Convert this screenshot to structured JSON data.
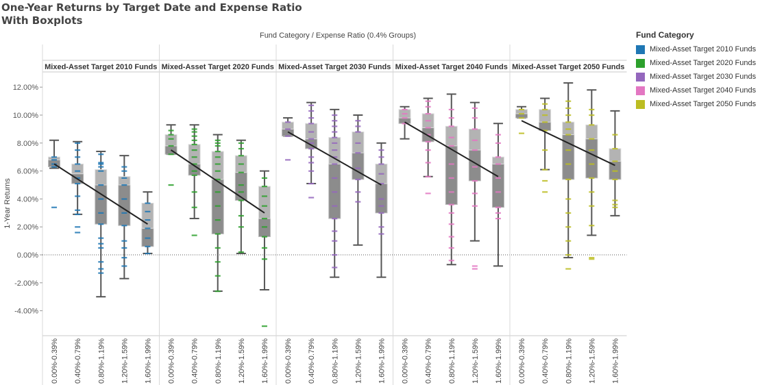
{
  "title_line1": "One-Year Returns by Target Date and Expense Ratio",
  "title_line2": "With Boxplots",
  "column_header": "Fund Category  /  Expense Ratio (0.4% Groups)",
  "legend": {
    "title": "Fund Category",
    "items": [
      {
        "label": "Mixed-Asset Target 2010 Funds",
        "color": "#1f77b4"
      },
      {
        "label": "Mixed-Asset Target 2020 Funds",
        "color": "#2ca02c"
      },
      {
        "label": "Mixed-Asset Target 2030 Funds",
        "color": "#9467bd"
      },
      {
        "label": "Mixed-Asset Target 2040 Funds",
        "color": "#e377c2"
      },
      {
        "label": "Mixed-Asset Target 2050 Funds",
        "color": "#bcbd22"
      }
    ]
  },
  "chart_data": {
    "type": "boxplot",
    "ylabel": "1-Year Returns",
    "ylim": [
      -6,
      13
    ],
    "yticks": [
      12,
      10,
      8,
      6,
      4,
      2,
      0,
      -2,
      -4
    ],
    "ytick_labels": [
      "12.00%",
      "10.00%",
      "8.00%",
      "6.00%",
      "4.00%",
      "2.00%",
      "0.00%",
      "-2.00%",
      "-4.00%"
    ],
    "categories": [
      "0.00%-0.39%",
      "0.40%-0.79%",
      "0.80%-1.19%",
      "1.20%-1.59%",
      "1.60%-1.99%"
    ],
    "grid": false,
    "zero_reference_line": true,
    "trend_line": true,
    "panels": [
      {
        "name": "Mixed-Asset Target 2010 Funds",
        "color": "#1f77b4",
        "boxes": [
          {
            "min": 6.2,
            "q1": 6.3,
            "median": 6.8,
            "q3": 7.0,
            "max": 8.2,
            "points": [
              3.4,
              6.3,
              6.5,
              6.8,
              7.0
            ]
          },
          {
            "min": 2.9,
            "q1": 5.1,
            "median": 5.8,
            "q3": 6.5,
            "max": 8.1,
            "points": [
              1.6,
              2.0,
              2.9,
              3.2,
              4.2,
              5.1,
              5.5,
              6.0,
              6.5,
              7.0,
              7.5,
              8.0
            ]
          },
          {
            "min": -3.0,
            "q1": 2.2,
            "median": 5.0,
            "q3": 6.1,
            "max": 7.4,
            "points": [
              -1.3,
              -1.0,
              -0.5,
              0.5,
              0.8,
              1.2,
              2.2,
              3.0,
              4.0,
              5.0,
              6.0,
              6.3,
              6.5,
              6.6,
              7.2
            ]
          },
          {
            "min": -1.7,
            "q1": 2.1,
            "median": 5.0,
            "q3": 5.6,
            "max": 7.1,
            "points": [
              -0.8,
              -0.2,
              0.5,
              1.0,
              2.1,
              3.0,
              4.0,
              5.0,
              5.5,
              6.0,
              6.3
            ]
          },
          {
            "min": 0.1,
            "q1": 0.6,
            "median": 1.9,
            "q3": 3.7,
            "max": 4.5,
            "points": [
              0.1,
              0.6,
              1.2,
              1.9,
              2.5,
              3.1,
              3.7
            ]
          }
        ],
        "trend": {
          "start": 6.5,
          "end": 2.2
        }
      },
      {
        "name": "Mixed-Asset Target 2020 Funds",
        "color": "#2ca02c",
        "boxes": [
          {
            "min": 7.2,
            "q1": 7.2,
            "median": 7.8,
            "q3": 8.6,
            "max": 9.3,
            "points": [
              5.0,
              7.2,
              7.8,
              8.3,
              8.6,
              8.9
            ]
          },
          {
            "min": 2.6,
            "q1": 5.7,
            "median": 6.5,
            "q3": 7.9,
            "max": 9.3,
            "points": [
              1.4,
              3.4,
              4.5,
              5.7,
              6.0,
              6.5,
              7.0,
              7.5,
              7.9,
              8.2,
              8.5,
              8.8,
              9.0
            ]
          },
          {
            "min": -2.6,
            "q1": 1.5,
            "median": 5.4,
            "q3": 7.4,
            "max": 8.6,
            "points": [
              -2.6,
              -1.5,
              -0.5,
              0.5,
              1.5,
              2.5,
              3.5,
              4.5,
              5.4,
              6.0,
              6.5,
              7.0,
              7.4,
              7.8,
              8.0,
              8.2
            ]
          },
          {
            "min": 0.1,
            "q1": 3.9,
            "median": 5.9,
            "q3": 7.1,
            "max": 8.2,
            "points": [
              0.2,
              2.0,
              2.8,
              3.9,
              4.5,
              5.0,
              5.9,
              6.5,
              7.1,
              7.6,
              8.0
            ]
          },
          {
            "min": -2.5,
            "q1": 1.3,
            "median": 2.6,
            "q3": 4.9,
            "max": 6.0,
            "points": [
              -5.1,
              -0.3,
              0.5,
              1.3,
              2.0,
              2.6,
              3.5,
              4.2,
              4.9,
              5.5
            ]
          }
        ],
        "trend": {
          "start": 7.5,
          "end": 3.0
        }
      },
      {
        "name": "Mixed-Asset Target 2030 Funds",
        "color": "#9467bd",
        "boxes": [
          {
            "min": 8.5,
            "q1": 8.5,
            "median": 9.0,
            "q3": 9.5,
            "max": 9.8,
            "points": [
              6.8,
              8.5,
              9.0,
              9.5
            ]
          },
          {
            "min": 5.1,
            "q1": 7.6,
            "median": 8.3,
            "q3": 9.4,
            "max": 10.9,
            "points": [
              4.1,
              5.1,
              6.0,
              6.6,
              7.0,
              7.6,
              8.0,
              8.3,
              8.8,
              9.4,
              9.8,
              10.3,
              10.7
            ]
          },
          {
            "min": -1.6,
            "q1": 2.6,
            "median": 6.5,
            "q3": 8.4,
            "max": 10.4,
            "points": [
              -0.9,
              0.0,
              1.0,
              1.7,
              2.6,
              3.5,
              4.5,
              5.5,
              6.5,
              7.0,
              7.5,
              8.0,
              8.4,
              8.8,
              9.2,
              9.6,
              10.0
            ]
          },
          {
            "min": 0.7,
            "q1": 5.4,
            "median": 7.3,
            "q3": 8.8,
            "max": 10.0,
            "points": [
              3.8,
              4.5,
              5.4,
              6.2,
              7.3,
              8.0,
              8.8,
              9.2,
              9.6
            ]
          },
          {
            "min": -1.6,
            "q1": 3.0,
            "median": 5.1,
            "q3": 6.5,
            "max": 8.0,
            "points": [
              1.5,
              2.0,
              3.0,
              3.5,
              4.0,
              5.1,
              5.8,
              6.5,
              7.0,
              7.5
            ]
          }
        ],
        "trend": {
          "start": 8.8,
          "end": 5.0
        }
      },
      {
        "name": "Mixed-Asset Target 2040 Funds",
        "color": "#e377c2",
        "boxes": [
          {
            "min": 8.3,
            "q1": 9.4,
            "median": 9.8,
            "q3": 10.4,
            "max": 10.6,
            "points": [
              9.4,
              9.8,
              10.1,
              10.4
            ]
          },
          {
            "min": 5.6,
            "q1": 8.1,
            "median": 9.1,
            "q3": 10.1,
            "max": 11.2,
            "points": [
              4.4,
              5.6,
              6.6,
              7.5,
              8.1,
              8.6,
              9.1,
              9.6,
              10.1,
              10.6,
              11.0
            ]
          },
          {
            "min": -0.7,
            "q1": 3.6,
            "median": 7.8,
            "q3": 9.2,
            "max": 11.5,
            "points": [
              -0.4,
              0.5,
              1.3,
              2.2,
              3.0,
              3.6,
              4.5,
              5.5,
              6.5,
              7.8,
              8.4,
              9.2,
              9.8,
              10.4
            ]
          },
          {
            "min": 1.0,
            "q1": 5.3,
            "median": 7.5,
            "q3": 9.0,
            "max": 10.9,
            "points": [
              -1.0,
              -0.8,
              3.5,
              4.4,
              5.3,
              6.3,
              7.5,
              8.2,
              9.0,
              9.8,
              10.5
            ]
          },
          {
            "min": -0.8,
            "q1": 3.4,
            "median": 6.5,
            "q3": 7.0,
            "max": 9.4,
            "points": [
              2.6,
              3.0,
              3.4,
              4.5,
              5.5,
              6.5,
              7.0,
              8.0,
              8.6
            ]
          }
        ],
        "trend": {
          "start": 9.5,
          "end": 5.6
        }
      },
      {
        "name": "Mixed-Asset Target 2050 Funds",
        "color": "#bcbd22",
        "boxes": [
          {
            "min": 9.8,
            "q1": 9.8,
            "median": 10.1,
            "q3": 10.4,
            "max": 10.6,
            "points": [
              8.7,
              9.8,
              10.1,
              10.4
            ]
          },
          {
            "min": 6.1,
            "q1": 8.9,
            "median": 9.5,
            "q3": 10.4,
            "max": 11.2,
            "points": [
              4.5,
              5.3,
              6.1,
              7.5,
              8.9,
              9.5,
              10.0,
              10.4,
              10.8
            ]
          },
          {
            "min": -0.2,
            "q1": 5.4,
            "median": 8.6,
            "q3": 9.5,
            "max": 12.3,
            "points": [
              -1.0,
              0.0,
              1.0,
              2.0,
              3.0,
              4.0,
              5.4,
              6.5,
              7.5,
              8.6,
              9.0,
              9.5,
              10.0,
              10.5,
              11.0
            ]
          },
          {
            "min": 1.4,
            "q1": 5.5,
            "median": 8.3,
            "q3": 9.3,
            "max": 11.8,
            "points": [
              -0.2,
              -0.3,
              2.1,
              3.5,
              4.5,
              5.5,
              6.5,
              7.5,
              8.3,
              9.3,
              10.0,
              10.4
            ]
          },
          {
            "min": 2.8,
            "q1": 5.4,
            "median": 6.7,
            "q3": 7.6,
            "max": 10.3,
            "points": [
              3.4,
              3.6,
              3.9,
              5.4,
              6.0,
              6.7,
              7.6,
              8.6
            ]
          }
        ],
        "trend": {
          "start": 9.6,
          "end": 6.4
        }
      }
    ]
  }
}
